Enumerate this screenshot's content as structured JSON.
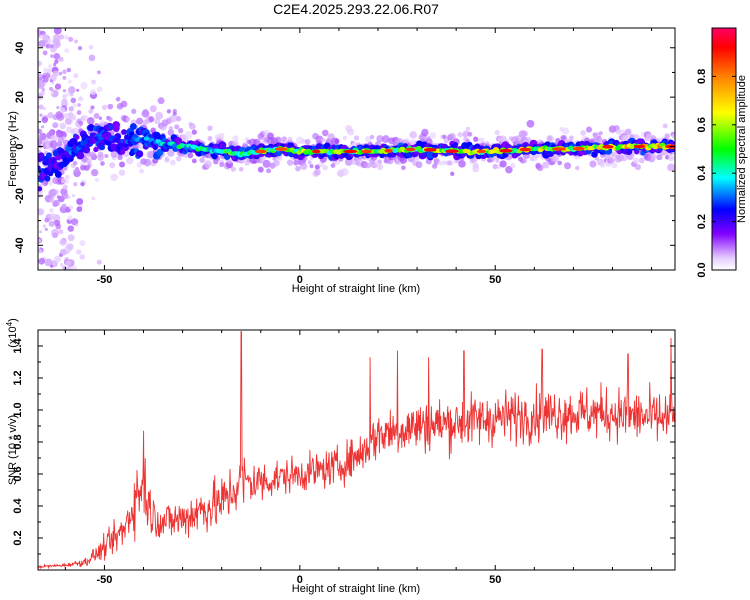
{
  "title": "C2E4.2025.293.22.06.R07",
  "colors": {
    "snr_line": "#ee3333",
    "frame": "#000000"
  },
  "chart_data": [
    {
      "type": "heatmap",
      "xlabel": "Height of straight line (km)",
      "ylabel": "Frequency (Hz)",
      "xlim": [
        -67,
        96
      ],
      "ylim": [
        -50,
        48
      ],
      "x_ticks": [
        -50,
        0,
        50
      ],
      "x_tick_labels": [
        "-50",
        "0",
        "50"
      ],
      "y_ticks": [
        -40,
        -20,
        0,
        20,
        40
      ],
      "y_tick_labels": [
        "-40",
        "-20",
        "0",
        "20",
        "40"
      ],
      "colorbar": {
        "label": "Normalized spectral amplitude",
        "range": [
          0,
          1
        ],
        "ticks": [
          0.0,
          0.2,
          0.4,
          0.6,
          0.8
        ],
        "tick_labels": [
          "0.0",
          "0.2",
          "0.4",
          "0.6",
          "0.8"
        ],
        "colormap": [
          "#ffffff",
          "#cc99ff",
          "#7f00ff",
          "#0000ff",
          "#00ffff",
          "#00ff00",
          "#ffff00",
          "#ff7f00",
          "#ff0000",
          "#ff0080"
        ]
      },
      "ridge": [
        {
          "x": -66,
          "y": -10,
          "amp": 0.3
        },
        {
          "x": -60,
          "y": -5,
          "amp": 0.35
        },
        {
          "x": -55,
          "y": 2,
          "amp": 0.3
        },
        {
          "x": -50,
          "y": 4,
          "amp": 0.3
        },
        {
          "x": -45,
          "y": 2,
          "amp": 0.3
        },
        {
          "x": -40,
          "y": 3,
          "amp": 0.35
        },
        {
          "x": -35,
          "y": 1,
          "amp": 0.45
        },
        {
          "x": -30,
          "y": 0,
          "amp": 0.5
        },
        {
          "x": -25,
          "y": -1,
          "amp": 0.55
        },
        {
          "x": -20,
          "y": -2,
          "amp": 0.55
        },
        {
          "x": -15,
          "y": -3,
          "amp": 0.6
        },
        {
          "x": -10,
          "y": -2,
          "amp": 0.6
        },
        {
          "x": -5,
          "y": -1,
          "amp": 0.6
        },
        {
          "x": 0,
          "y": -2,
          "amp": 0.65
        },
        {
          "x": 10,
          "y": -2,
          "amp": 0.65
        },
        {
          "x": 20,
          "y": -2,
          "amp": 0.65
        },
        {
          "x": 30,
          "y": -1,
          "amp": 0.7
        },
        {
          "x": 40,
          "y": -2,
          "amp": 0.7
        },
        {
          "x": 50,
          "y": -2,
          "amp": 0.7
        },
        {
          "x": 60,
          "y": -1,
          "amp": 0.75
        },
        {
          "x": 70,
          "y": -1,
          "amp": 0.75
        },
        {
          "x": 80,
          "y": 0,
          "amp": 0.8
        },
        {
          "x": 90,
          "y": 0,
          "amp": 0.85
        },
        {
          "x": 95,
          "y": 0,
          "amp": 0.9
        }
      ],
      "low_height_scatter": {
        "x_range": [
          -67,
          -50
        ],
        "y_range": [
          -50,
          48
        ]
      }
    },
    {
      "type": "line",
      "xlabel": "Height of straight line (km)",
      "ylabel": "SNR (10 * v/v)",
      "y_multiplier": "(x10",
      "y_multiplier_exp": "4",
      "y_multiplier_close": ")",
      "xlim": [
        -67,
        96
      ],
      "ylim": [
        0,
        1.5
      ],
      "x_ticks": [
        -50,
        0,
        50
      ],
      "x_tick_labels": [
        "-50",
        "0",
        "50"
      ],
      "y_ticks": [
        0.2,
        0.4,
        0.6,
        0.8,
        1.0,
        1.2,
        1.4
      ],
      "y_tick_labels": [
        "0.2",
        "0.4",
        "0.6",
        "0.8",
        "1.0",
        "1.2",
        "1.4"
      ],
      "series": [
        {
          "trend_x": [
            -67,
            -60,
            -55,
            -52,
            -48,
            -45,
            -42,
            -40,
            -38,
            -35,
            -30,
            -25,
            -20,
            -17,
            -15,
            -13,
            -10,
            -5,
            0,
            5,
            10,
            15,
            18,
            20,
            30,
            40,
            50,
            60,
            70,
            80,
            90,
            96
          ],
          "trend_y": [
            0.02,
            0.03,
            0.05,
            0.1,
            0.18,
            0.25,
            0.45,
            0.55,
            0.35,
            0.3,
            0.32,
            0.38,
            0.42,
            0.5,
            0.55,
            0.55,
            0.55,
            0.58,
            0.6,
            0.62,
            0.65,
            0.72,
            0.78,
            0.85,
            0.9,
            0.92,
            0.95,
            0.97,
            0.98,
            0.98,
            0.95,
            0.95
          ],
          "spread_y": [
            0.01,
            0.01,
            0.03,
            0.06,
            0.1,
            0.14,
            0.22,
            0.28,
            0.15,
            0.13,
            0.15,
            0.17,
            0.18,
            0.2,
            0.2,
            0.18,
            0.15,
            0.12,
            0.12,
            0.13,
            0.13,
            0.14,
            0.15,
            0.17,
            0.18,
            0.18,
            0.18,
            0.18,
            0.18,
            0.18,
            0.18,
            0.2
          ],
          "peaks": [
            {
              "x": -15,
              "y": 1.49
            },
            {
              "x": 18,
              "y": 1.33
            },
            {
              "x": 25,
              "y": 1.37
            },
            {
              "x": 33,
              "y": 1.33
            },
            {
              "x": 42,
              "y": 1.37
            },
            {
              "x": 62,
              "y": 1.38
            },
            {
              "x": 84,
              "y": 1.35
            },
            {
              "x": 95,
              "y": 1.45
            },
            {
              "x": -40,
              "y": 0.87
            }
          ]
        }
      ]
    }
  ]
}
